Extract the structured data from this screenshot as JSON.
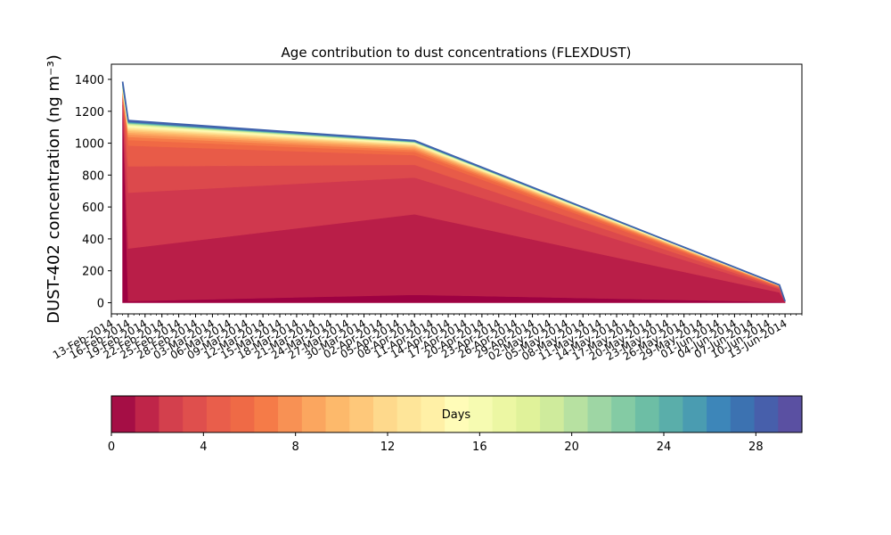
{
  "chart_data": {
    "type": "area",
    "title": "Age contribution to dust concentrations (FLEXDUST)",
    "ylabel": "DUST-402 concentration (ng m⁻³)",
    "xlabel": "",
    "ylim": [
      -70,
      1495
    ],
    "xlim": [
      "2014-02-13",
      "2014-06-16"
    ],
    "yticks": [
      0,
      200,
      400,
      600,
      800,
      1000,
      1200,
      1400
    ],
    "xticks": [
      "13-Feb-2014",
      "16-Feb-2014",
      "19-Feb-2014",
      "22-Feb-2014",
      "25-Feb-2014",
      "28-Feb-2014",
      "03-Mar-2014",
      "06-Mar-2014",
      "09-Mar-2014",
      "12-Mar-2014",
      "15-Mar-2014",
      "18-Mar-2014",
      "21-Mar-2014",
      "24-Mar-2014",
      "27-Mar-2014",
      "30-Mar-2014",
      "02-Apr-2014",
      "05-Apr-2014",
      "08-Apr-2014",
      "11-Apr-2014",
      "14-Apr-2014",
      "17-Apr-2014",
      "20-Apr-2014",
      "23-Apr-2014",
      "26-Apr-2014",
      "29-Apr-2014",
      "02-May-2014",
      "05-May-2014",
      "08-May-2014",
      "11-May-2014",
      "14-May-2014",
      "17-May-2014",
      "20-May-2014",
      "23-May-2014",
      "26-May-2014",
      "29-May-2014",
      "01-Jun-2014",
      "04-Jun-2014",
      "07-Jun-2014",
      "10-Jun-2014",
      "13-Jun-2014"
    ],
    "x": [
      "2014-02-15",
      "2014-02-16",
      "2014-04-08",
      "2014-06-12",
      "2014-06-13"
    ],
    "series_note_days": "stacked contributions by particle age, 1-day bins from 0 to 30 days",
    "series": [
      {
        "values": [
          1240,
          10,
          50,
          5,
          0
        ]
      },
      {
        "values": [
          20,
          330,
          505,
          60,
          5
        ]
      },
      {
        "values": [
          15,
          350,
          230,
          20,
          3
        ]
      },
      {
        "values": [
          10,
          165,
          80,
          7,
          1
        ]
      },
      {
        "values": [
          10,
          130,
          60,
          5,
          0
        ]
      },
      {
        "values": [
          8,
          35,
          20,
          3,
          0
        ]
      },
      {
        "values": [
          6,
          20,
          12,
          2,
          0
        ]
      },
      {
        "values": [
          5,
          15,
          10,
          2,
          0
        ]
      },
      {
        "values": [
          5,
          12,
          8,
          1,
          0
        ]
      },
      {
        "values": [
          4,
          10,
          6,
          1,
          0
        ]
      },
      {
        "values": [
          4,
          8,
          5,
          1,
          0
        ]
      },
      {
        "values": [
          3,
          7,
          4,
          1,
          0
        ]
      },
      {
        "values": [
          3,
          6,
          3,
          1,
          0
        ]
      },
      {
        "values": [
          3,
          5,
          3,
          1,
          0
        ]
      },
      {
        "values": [
          3,
          4,
          2,
          1,
          0
        ]
      },
      {
        "values": [
          3,
          4,
          2,
          0,
          0
        ]
      },
      {
        "values": [
          3,
          3,
          2,
          0,
          0
        ]
      },
      {
        "values": [
          3,
          3,
          2,
          0,
          0
        ]
      },
      {
        "values": [
          3,
          3,
          1,
          0,
          0
        ]
      },
      {
        "values": [
          3,
          2,
          1,
          0,
          0
        ]
      },
      {
        "values": [
          3,
          2,
          1,
          0,
          0
        ]
      },
      {
        "values": [
          3,
          2,
          1,
          0,
          0
        ]
      },
      {
        "values": [
          3,
          2,
          1,
          0,
          0
        ]
      },
      {
        "values": [
          3,
          2,
          1,
          0,
          0
        ]
      },
      {
        "values": [
          3,
          2,
          1,
          0,
          0
        ]
      },
      {
        "values": [
          3,
          2,
          1,
          0,
          0
        ]
      },
      {
        "values": [
          3,
          2,
          1,
          0,
          0
        ]
      },
      {
        "values": [
          3,
          2,
          1,
          0,
          0
        ]
      },
      {
        "values": [
          3,
          2,
          1,
          0,
          0
        ]
      },
      {
        "values": [
          5,
          2,
          1,
          0,
          0
        ]
      }
    ],
    "colors": [
      "#9e0142",
      "#b91e48",
      "#d0384e",
      "#dc494c",
      "#e85b48",
      "#f06944",
      "#f57a48",
      "#f99153",
      "#fca65f",
      "#fdba6c",
      "#fecb7b",
      "#fedb8c",
      "#fee89a",
      "#fff1a8",
      "#fffbb8",
      "#f7fcb3",
      "#eef8a5",
      "#e2f397",
      "#d0ec9c",
      "#b8e2a2",
      "#9fd7a4",
      "#85cca5",
      "#6ebea6",
      "#5aaea9",
      "#4b9ab0",
      "#3d85b8",
      "#3c70b2",
      "#4b5eab",
      "#5e4fa2",
      "#5e4fa2"
    ],
    "colorbar": {
      "label": "Days",
      "range": [
        0,
        30
      ],
      "ticks": [
        0,
        4,
        8,
        12,
        16,
        20,
        24,
        28
      ],
      "colors": [
        "#a50e45",
        "#bf2549",
        "#d3404d",
        "#df4f4d",
        "#e95e4b",
        "#ef6a46",
        "#f57b48",
        "#f89154",
        "#fba65f",
        "#fdb96b",
        "#fec87a",
        "#fed98c",
        "#fee599",
        "#fff0a6",
        "#fffcb8",
        "#f6fbb1",
        "#ecf7a3",
        "#e0f29a",
        "#cfeb9c",
        "#b7e1a1",
        "#9ed6a4",
        "#84cba4",
        "#6dbea5",
        "#5aaeaa",
        "#4a9cb1",
        "#3d86b9",
        "#3c72b1",
        "#475fab",
        "#5a50a2"
      ]
    }
  }
}
